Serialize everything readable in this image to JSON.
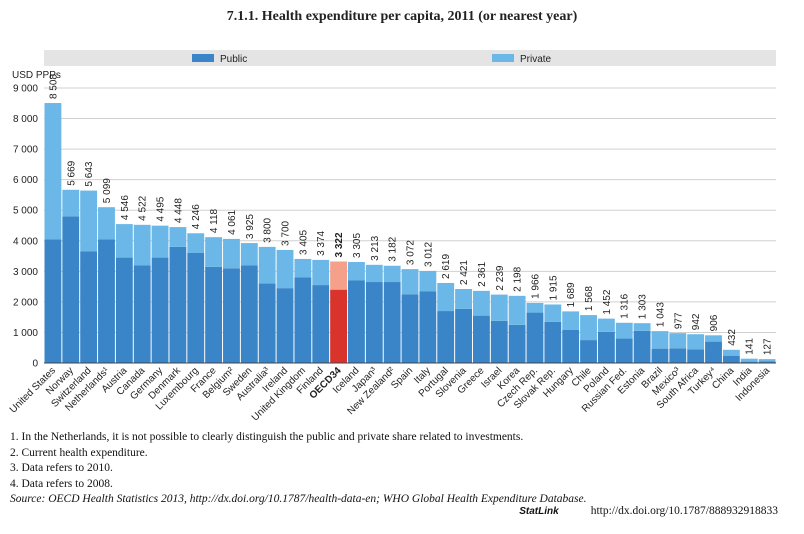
{
  "chart_data": {
    "type": "stacked_bar",
    "title": "7.1.1.  Health expenditure per capita, 2011 (or nearest year)",
    "y_label": "USD PPPs",
    "categories": [
      "United States",
      "Norway",
      "Switzerland",
      "Netherlands¹",
      "Austria",
      "Canada",
      "Germany",
      "Denmark",
      "Luxembourg",
      "France",
      "Belgium²",
      "Sweden",
      "Australia³",
      "Ireland",
      "United Kingdom",
      "Finland",
      "OECD34",
      "Iceland",
      "Japan³",
      "New Zealand²",
      "Spain",
      "Italy",
      "Portugal",
      "Slovenia",
      "Greece",
      "Israel",
      "Korea",
      "Czech Rep.",
      "Slovak Rep.",
      "Hungary",
      "Chile",
      "Poland",
      "Russian Fed.",
      "Estonia",
      "Brazil",
      "Mexico³",
      "South Africa",
      "Turkey⁴",
      "China",
      "India",
      "Indonesia"
    ],
    "series": [
      {
        "name": "Public",
        "color": "#3a84c8",
        "highlight_color": "#d9342b",
        "values": [
          4050,
          4800,
          3650,
          4050,
          3450,
          3200,
          3450,
          3800,
          3600,
          3150,
          3100,
          3200,
          2600,
          2450,
          2800,
          2550,
          2400,
          2700,
          2650,
          2650,
          2250,
          2350,
          1700,
          1770,
          1550,
          1380,
          1250,
          1650,
          1350,
          1080,
          750,
          1020,
          800,
          1050,
          470,
          480,
          450,
          700,
          240,
          45,
          50
        ]
      },
      {
        "name": "Private",
        "color": "#6ab7e8",
        "highlight_color": "#f4a08a",
        "values": [
          4458,
          869,
          1993,
          1049,
          1096,
          1322,
          1045,
          648,
          646,
          968,
          961,
          725,
          1200,
          1250,
          605,
          824,
          922,
          605,
          563,
          532,
          822,
          662,
          919,
          651,
          811,
          859,
          948,
          316,
          565,
          609,
          818,
          432,
          516,
          253,
          573,
          497,
          492,
          206,
          192,
          96,
          77
        ]
      }
    ],
    "totals": [
      8508,
      5669,
      5643,
      5099,
      4546,
      4522,
      4495,
      4448,
      4246,
      4118,
      4061,
      3925,
      3800,
      3700,
      3405,
      3374,
      3322,
      3305,
      3213,
      3182,
      3072,
      3012,
      2619,
      2421,
      2361,
      2239,
      2198,
      1966,
      1915,
      1689,
      1568,
      1452,
      1316,
      1303,
      1043,
      977,
      942,
      906,
      432,
      141,
      127
    ],
    "total_labels": [
      "8 508",
      "5 669",
      "5 643",
      "5 099",
      "4 546",
      "4 522",
      "4 495",
      "4 448",
      "4 246",
      "4 118",
      "4 061",
      "3 925",
      "3 800",
      "3 700",
      "3 405",
      "3 374",
      "3 322",
      "3 305",
      "3 213",
      "3 182",
      "3 072",
      "3 012",
      "2 619",
      "2 421",
      "2 361",
      "2 239",
      "2 198",
      "1 966",
      "1 915",
      "1 689",
      "1 568",
      "1 452",
      "1 316",
      "1 303",
      "1 043",
      "977",
      "942",
      "906",
      "432",
      "141",
      "127"
    ],
    "highlight": "OECD34",
    "ylim": [
      0,
      9000
    ],
    "yticks": [
      0,
      {
        "value": 1000,
        "label": "1 000"
      },
      {
        "value": 2000,
        "label": "2 000"
      },
      {
        "value": 3000,
        "label": "3 000"
      },
      {
        "value": 4000,
        "label": "4 000"
      },
      {
        "value": 5000,
        "label": "5 000"
      },
      {
        "value": 6000,
        "label": "6 000"
      },
      {
        "value": 7000,
        "label": "7 000"
      },
      {
        "value": 8000,
        "label": "8 000"
      },
      {
        "value": 9000,
        "label": "9 000"
      }
    ],
    "grid": true
  },
  "notes": [
    "1.  In the Netherlands, it is not possible to clearly distinguish the public and private share related to investments.",
    "2.  Current health expenditure.",
    "3.  Data refers to 2010.",
    "4.  Data refers to 2008."
  ],
  "source": "Source:  OECD Health Statistics 2013, http://dx.doi.org/10.1787/health-data-en; WHO Global Health Expenditure Database.",
  "statlink_brand": "StatLink",
  "statlink_url": "http://dx.doi.org/10.1787/888932918833"
}
